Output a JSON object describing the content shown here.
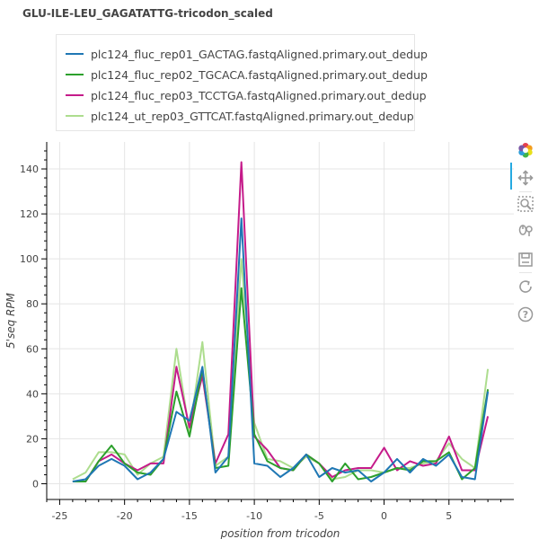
{
  "title": "GLU-ILE-LEU_GAGATATTG-tricodon_scaled",
  "toolbar": {
    "tools": [
      "bokeh-logo-icon",
      "pan-icon",
      "box-zoom-icon",
      "wheel-zoom-icon",
      "save-icon",
      "reset-icon",
      "help-icon"
    ]
  },
  "chart_data": {
    "type": "line",
    "title": "GLU-ILE-LEU_GAGATATTG-tricodon_scaled",
    "xlabel": "position from tricodon",
    "ylabel": "5'seq RPM",
    "xlim": [
      -26,
      10
    ],
    "ylim": [
      -7,
      152
    ],
    "xticks": [
      -25,
      -20,
      -15,
      -10,
      -5,
      0,
      5
    ],
    "yticks": [
      0,
      20,
      40,
      60,
      80,
      100,
      120,
      140
    ],
    "grid": true,
    "legend_position": "top-left",
    "x": [
      -24,
      -23,
      -22,
      -21,
      -20,
      -19,
      -18,
      -17,
      -16,
      -15,
      -14,
      -13,
      -12,
      -11,
      -10,
      -9,
      -8,
      -7,
      -6,
      -5,
      -4,
      -3,
      -2,
      -1,
      0,
      1,
      2,
      3,
      4,
      5,
      6,
      7,
      8
    ],
    "series": [
      {
        "name": "plc124_fluc_rep01_GACTAG.fastqAligned.primary.out_dedup",
        "color": "#1f77b4",
        "values": [
          1,
          2,
          8,
          11,
          8,
          2,
          5,
          11,
          32,
          28,
          52,
          5,
          12,
          118,
          9,
          8,
          3,
          7,
          13,
          3,
          7,
          5,
          6,
          1,
          5,
          11,
          5,
          11,
          8,
          13,
          3,
          2,
          41
        ]
      },
      {
        "name": "plc124_fluc_rep02_TGCACA.fastqAligned.primary.out_dedup",
        "color": "#2ca02c",
        "values": [
          1,
          1,
          10,
          17,
          9,
          5,
          4,
          11,
          41,
          21,
          51,
          7,
          8,
          87,
          22,
          10,
          7,
          6,
          13,
          9,
          1,
          9,
          2,
          3,
          5,
          7,
          6,
          10,
          10,
          14,
          2,
          7,
          42
        ]
      },
      {
        "name": "plc124_fluc_rep03_TCCTGA.fastqAligned.primary.out_dedup",
        "color": "#c51b8a",
        "values": [
          1,
          1,
          10,
          13,
          9,
          6,
          9,
          9,
          52,
          25,
          48,
          9,
          22,
          143,
          21,
          15,
          7,
          6,
          13,
          9,
          3,
          6,
          7,
          7,
          16,
          6,
          10,
          8,
          9,
          21,
          6,
          6,
          30
        ]
      },
      {
        "name": "plc124_ut_rep03_GTTCAT.fastqAligned.primary.out_dedup",
        "color": "#addd8e",
        "values": [
          2,
          5,
          14,
          14,
          13,
          4,
          9,
          12,
          60,
          23,
          63,
          8,
          12,
          100,
          27,
          11,
          10,
          7,
          12,
          9,
          2,
          3,
          6,
          6,
          5,
          7,
          7,
          9,
          10,
          18,
          11,
          7,
          51
        ]
      }
    ]
  }
}
